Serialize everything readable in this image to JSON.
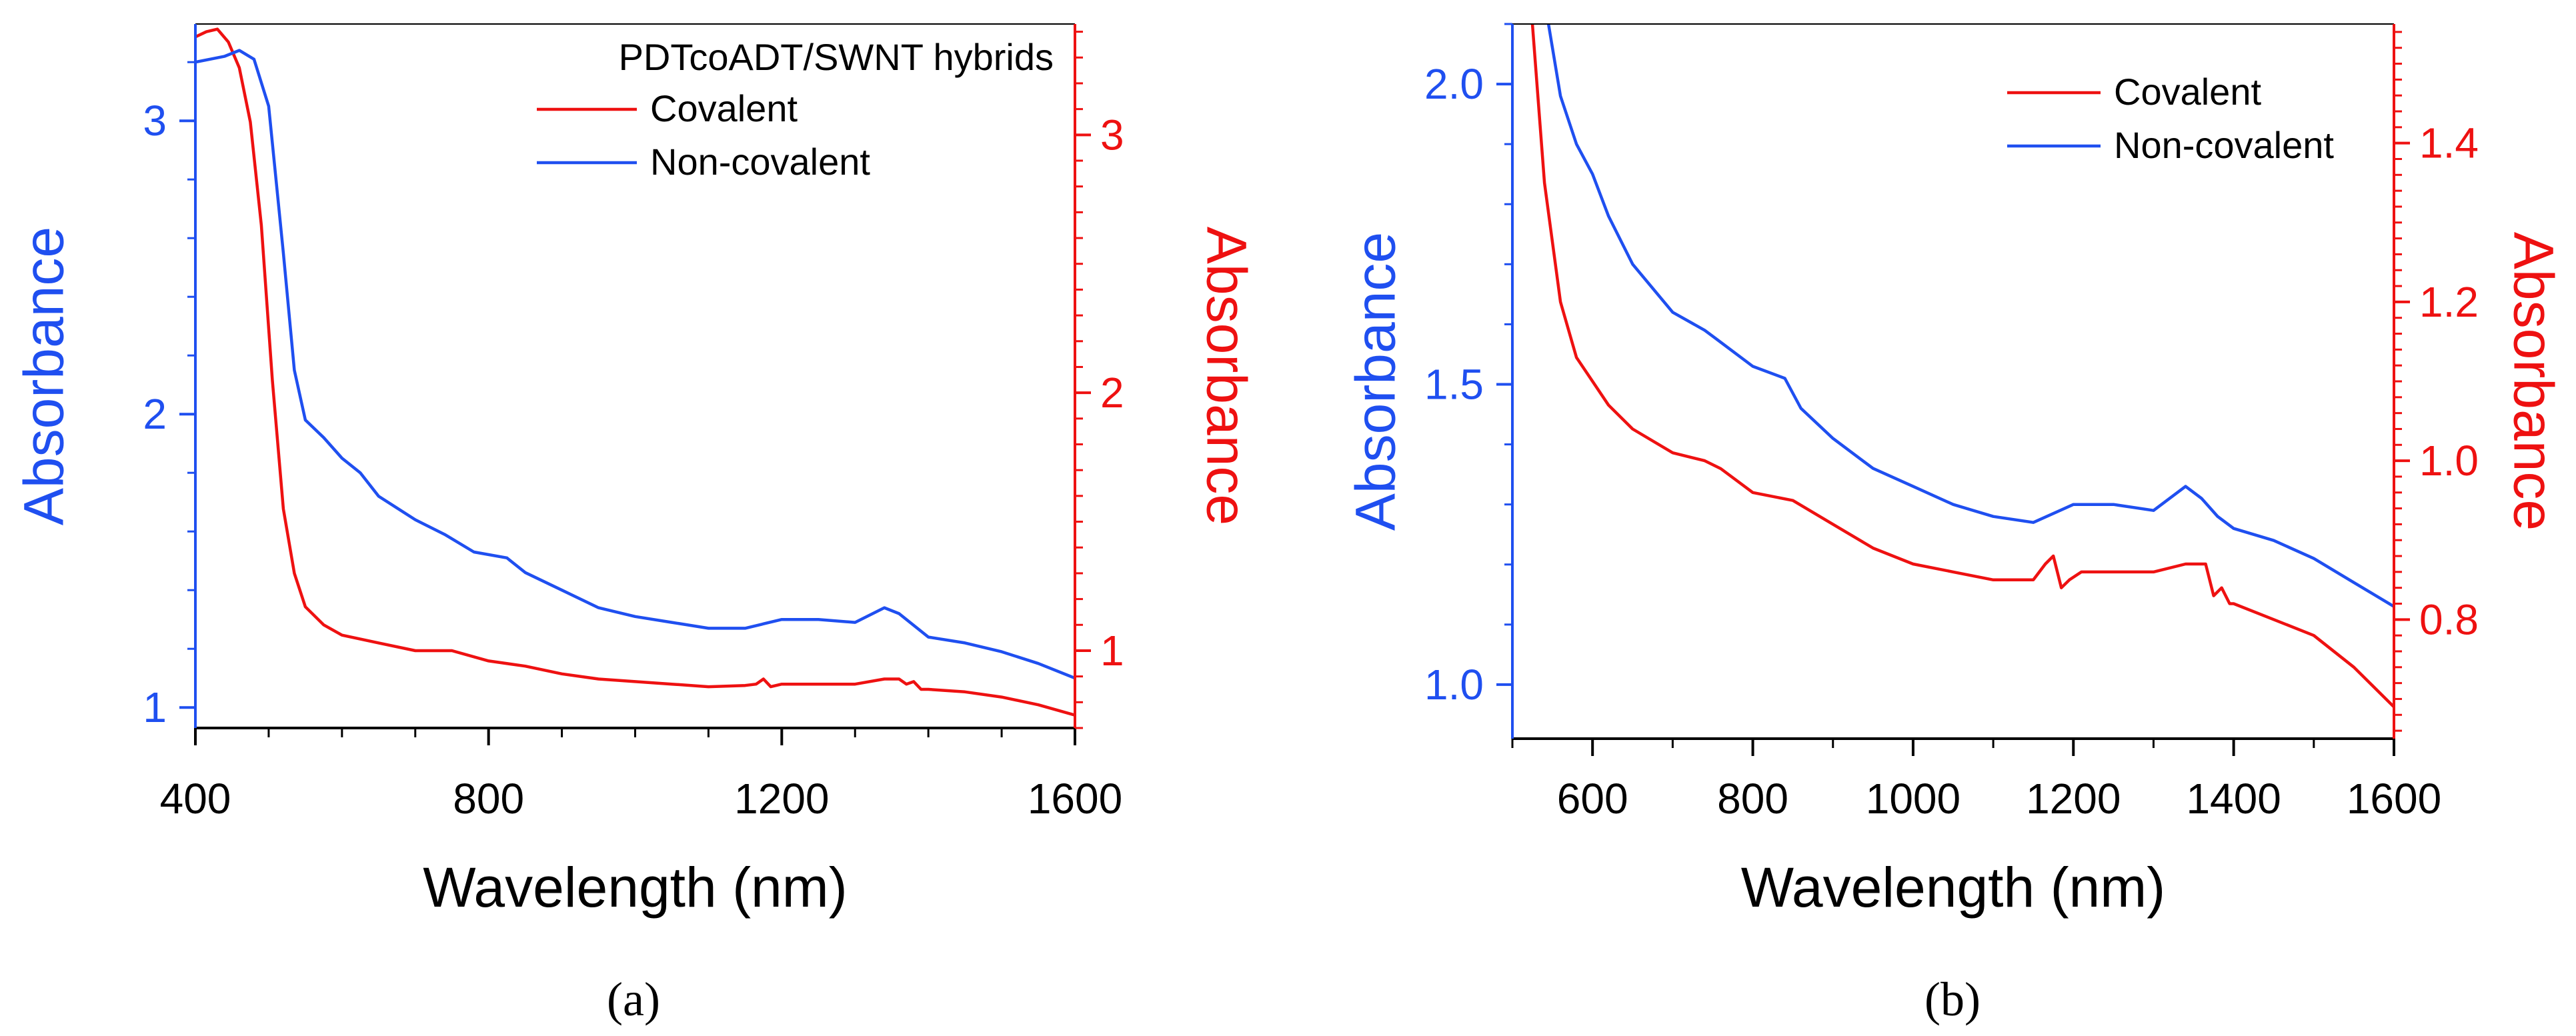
{
  "colors": {
    "blue": "#1f4ff0",
    "red": "#ee1111",
    "axis": "#000000"
  },
  "chart_data": [
    {
      "type": "line",
      "panel": "a",
      "panel_label": "(a)",
      "xlabel": "Wavelength (nm)",
      "ylabel_left": "Absorbance",
      "ylabel_right": "Absorbance",
      "xlim": [
        400,
        1600
      ],
      "ylim_left": [
        0.93,
        3.33
      ],
      "ylim_right": [
        0.7,
        3.43
      ],
      "x_ticks": [
        400,
        800,
        1200,
        1600
      ],
      "x_minor_ticks": [
        500,
        600,
        700,
        900,
        1000,
        1100,
        1300,
        1400,
        1500
      ],
      "y_ticks_left": [
        1,
        2,
        3
      ],
      "y_ticks_right": [
        1,
        2,
        3
      ],
      "legend_title": "PDTcoADT/SWNT hybrids",
      "legend_position": "top-right",
      "series": [
        {
          "name": "Covalent",
          "axis": "right",
          "color": "#ee1111",
          "x": [
            400,
            415,
            430,
            445,
            460,
            475,
            490,
            505,
            520,
            535,
            550,
            575,
            600,
            650,
            700,
            750,
            800,
            850,
            900,
            950,
            1000,
            1050,
            1100,
            1150,
            1165,
            1175,
            1185,
            1200,
            1250,
            1300,
            1340,
            1360,
            1370,
            1380,
            1390,
            1400,
            1450,
            1500,
            1550,
            1600
          ],
          "y": [
            3.38,
            3.4,
            3.41,
            3.36,
            3.26,
            3.05,
            2.65,
            2.05,
            1.55,
            1.3,
            1.17,
            1.1,
            1.06,
            1.03,
            1.0,
            1.0,
            0.96,
            0.94,
            0.91,
            0.89,
            0.88,
            0.87,
            0.86,
            0.865,
            0.87,
            0.89,
            0.86,
            0.87,
            0.87,
            0.87,
            0.89,
            0.89,
            0.87,
            0.88,
            0.85,
            0.85,
            0.84,
            0.82,
            0.79,
            0.75
          ]
        },
        {
          "name": "Non-covalent",
          "axis": "left",
          "color": "#1f4ff0",
          "x": [
            400,
            420,
            440,
            460,
            480,
            500,
            520,
            535,
            550,
            575,
            600,
            625,
            650,
            700,
            740,
            780,
            825,
            850,
            900,
            950,
            1000,
            1050,
            1100,
            1150,
            1200,
            1250,
            1300,
            1340,
            1360,
            1380,
            1400,
            1450,
            1500,
            1550,
            1600
          ],
          "y": [
            3.2,
            3.21,
            3.22,
            3.24,
            3.21,
            3.05,
            2.55,
            2.15,
            1.98,
            1.92,
            1.85,
            1.8,
            1.72,
            1.64,
            1.59,
            1.53,
            1.51,
            1.46,
            1.4,
            1.34,
            1.31,
            1.29,
            1.27,
            1.27,
            1.3,
            1.3,
            1.29,
            1.34,
            1.32,
            1.28,
            1.24,
            1.22,
            1.19,
            1.15,
            1.1
          ]
        }
      ]
    },
    {
      "type": "line",
      "panel": "b",
      "panel_label": "(b)",
      "xlabel": "Wavelength (nm)",
      "ylabel_left": "Absorbance",
      "ylabel_right": "Absorbance",
      "xlim": [
        500,
        1600
      ],
      "ylim_left": [
        0.91,
        2.1
      ],
      "ylim_right": [
        0.65,
        1.55
      ],
      "x_ticks": [
        600,
        800,
        1000,
        1200,
        1400,
        1600
      ],
      "x_minor_ticks": [
        500,
        700,
        900,
        1100,
        1300,
        1500
      ],
      "y_ticks_left": [
        "1.0",
        "1.5",
        "2.0"
      ],
      "y_ticks_right": [
        "0.8",
        "1.0",
        "1.2",
        "1.4"
      ],
      "legend_position": "top-right",
      "series": [
        {
          "name": "Covalent",
          "axis": "right",
          "color": "#ee1111",
          "x": [
            525,
            540,
            560,
            580,
            600,
            620,
            650,
            700,
            740,
            760,
            800,
            850,
            900,
            950,
            1000,
            1050,
            1100,
            1150,
            1165,
            1175,
            1185,
            1195,
            1210,
            1250,
            1300,
            1340,
            1365,
            1375,
            1385,
            1395,
            1400,
            1450,
            1500,
            1550,
            1600
          ],
          "y": [
            1.55,
            1.35,
            1.2,
            1.13,
            1.1,
            1.07,
            1.04,
            1.01,
            1.0,
            0.99,
            0.96,
            0.95,
            0.92,
            0.89,
            0.87,
            0.86,
            0.85,
            0.85,
            0.87,
            0.88,
            0.84,
            0.85,
            0.86,
            0.86,
            0.86,
            0.87,
            0.87,
            0.83,
            0.84,
            0.82,
            0.82,
            0.8,
            0.78,
            0.74,
            0.69
          ]
        },
        {
          "name": "Non-covalent",
          "axis": "left",
          "color": "#1f4ff0",
          "x": [
            545,
            560,
            580,
            600,
            620,
            650,
            700,
            740,
            760,
            800,
            840,
            860,
            900,
            950,
            1000,
            1050,
            1100,
            1150,
            1200,
            1250,
            1300,
            1340,
            1360,
            1380,
            1400,
            1450,
            1500,
            1550,
            1600
          ],
          "y": [
            2.1,
            1.98,
            1.9,
            1.85,
            1.78,
            1.7,
            1.62,
            1.59,
            1.57,
            1.53,
            1.51,
            1.46,
            1.41,
            1.36,
            1.33,
            1.3,
            1.28,
            1.27,
            1.3,
            1.3,
            1.29,
            1.33,
            1.31,
            1.28,
            1.26,
            1.24,
            1.21,
            1.17,
            1.13
          ]
        }
      ]
    }
  ]
}
